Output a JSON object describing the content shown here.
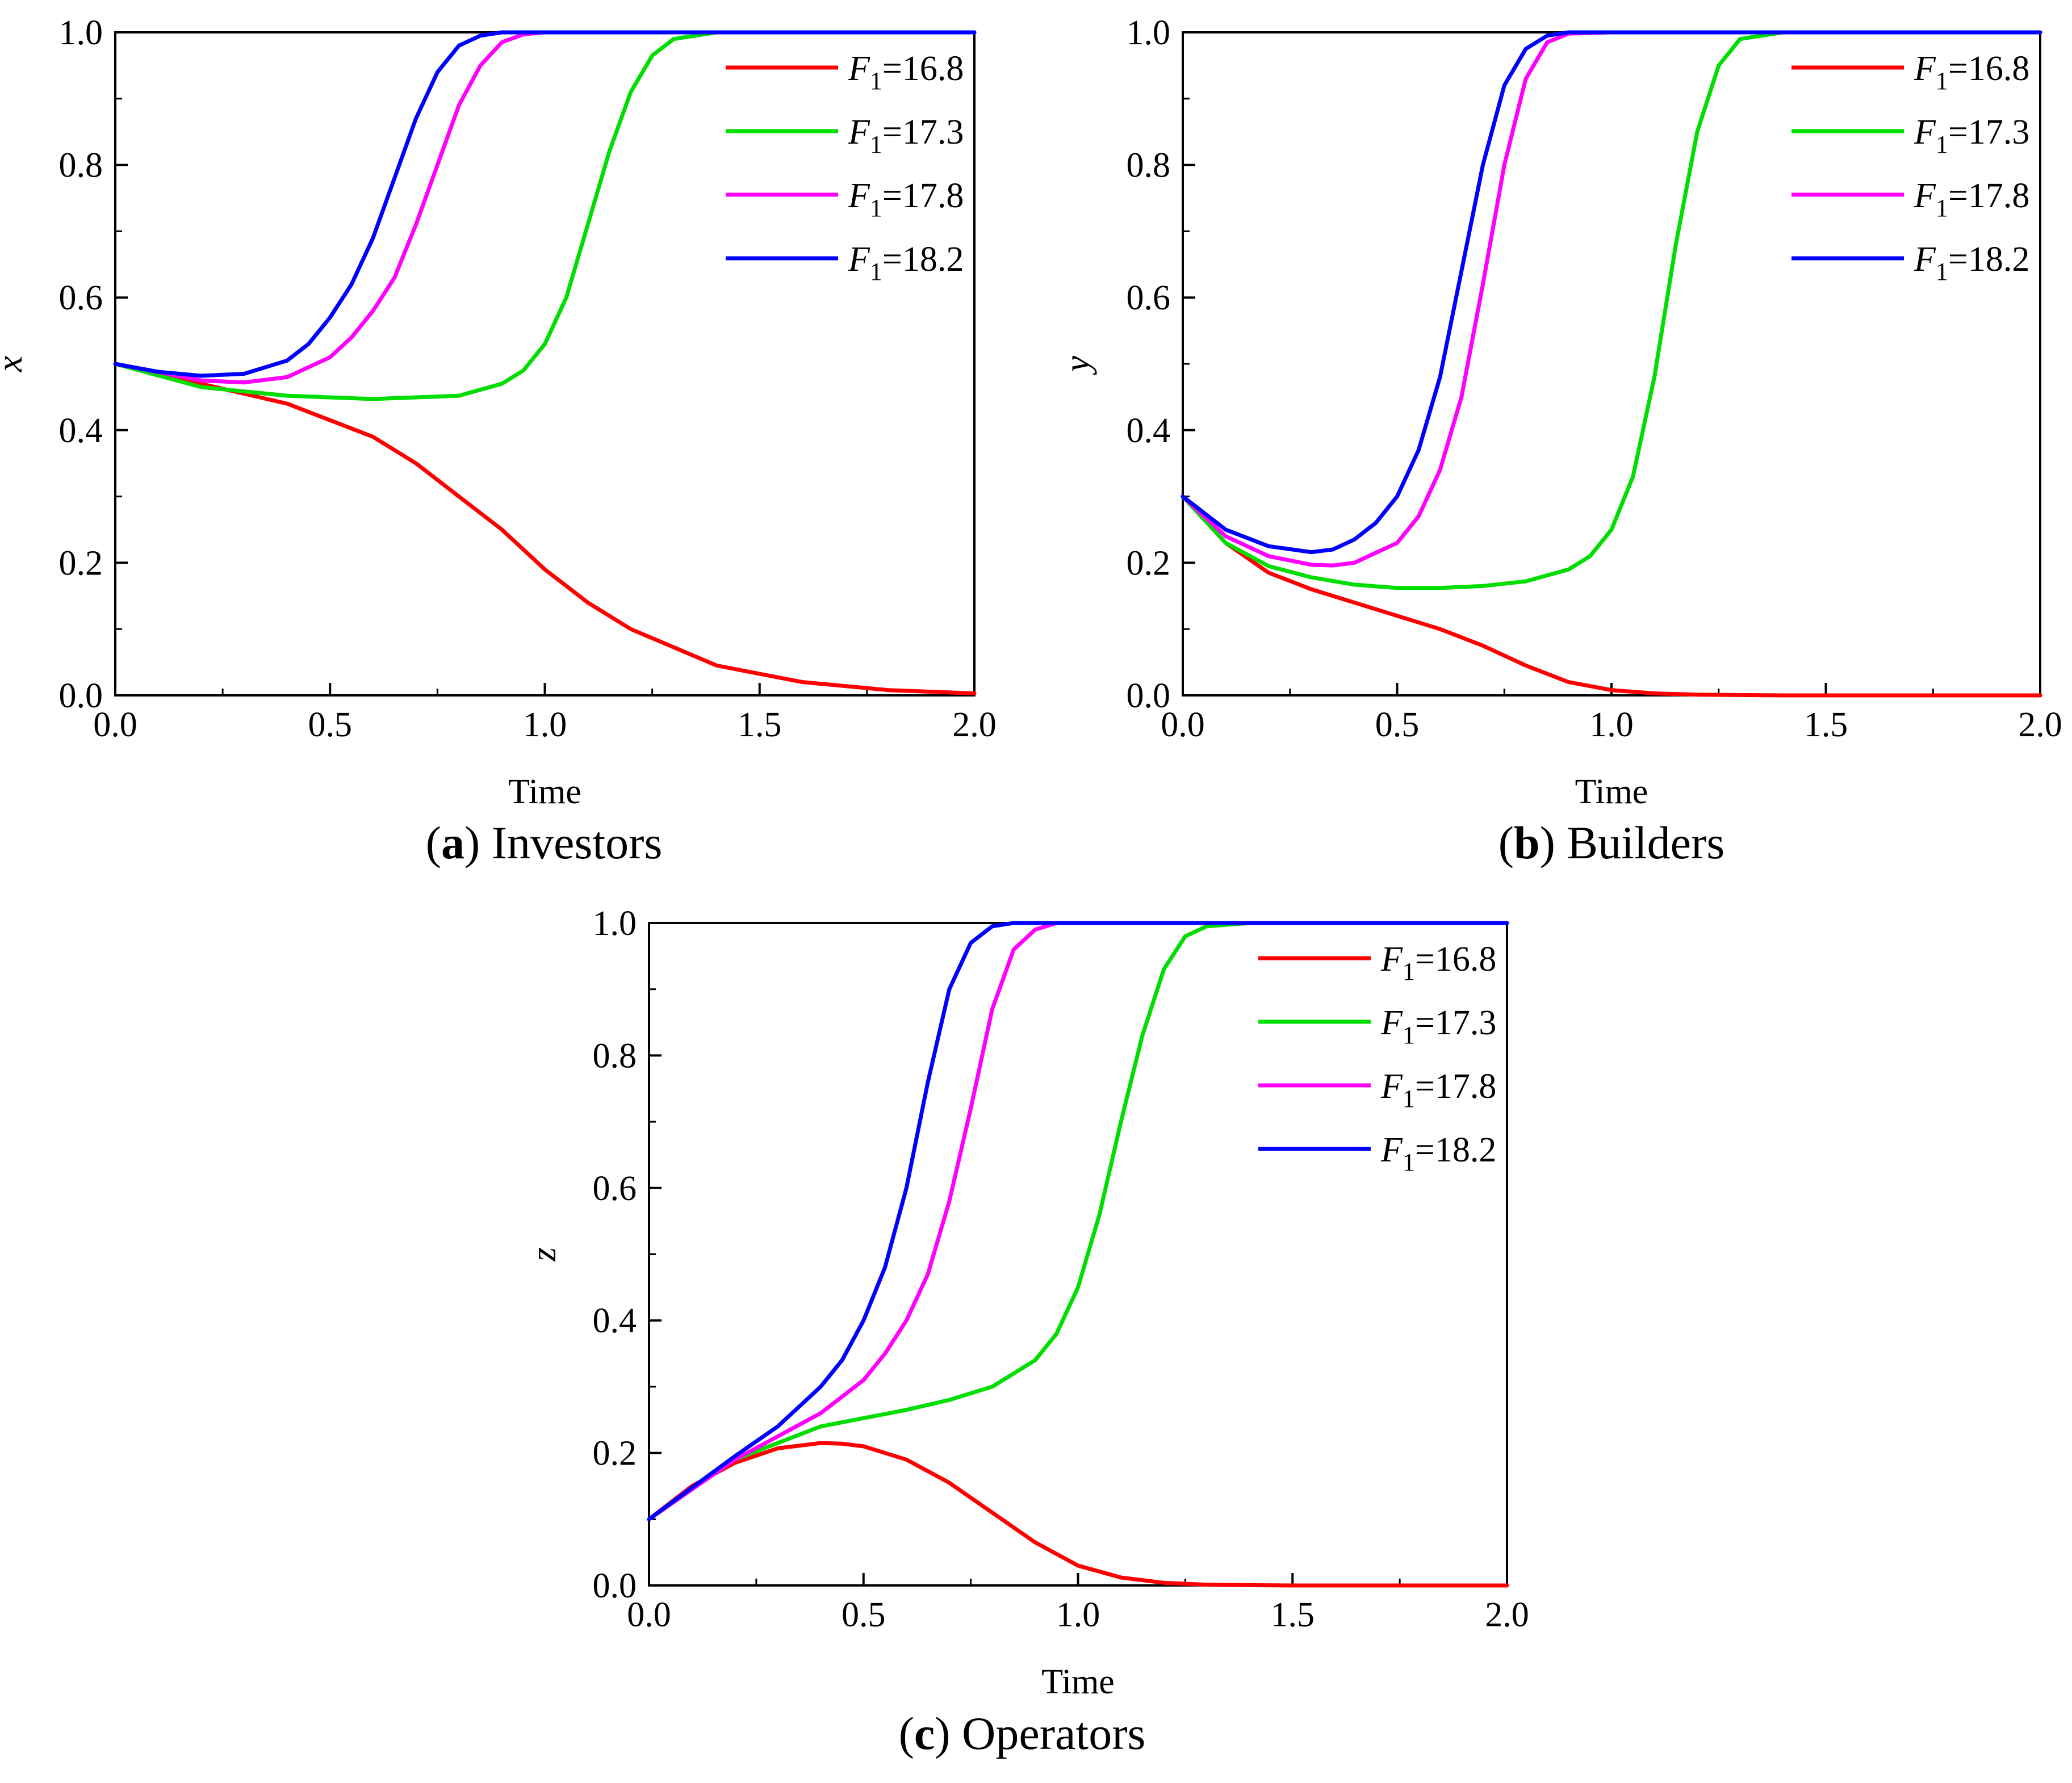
{
  "figure": {
    "legend_prefix": "F",
    "legend_subscript": "1",
    "colors": {
      "axis": "#000000",
      "background": "#ffffff"
    }
  },
  "chart_data": [
    {
      "type": "line",
      "panel_label": "a",
      "caption": "Investors",
      "xlabel": "Time",
      "ylabel": "x",
      "xlim": [
        0,
        2
      ],
      "ylim": [
        0,
        1
      ],
      "xticks": [
        "0.0",
        "0.5",
        "1.0",
        "1.5",
        "2.0"
      ],
      "yticks": [
        "0.0",
        "0.2",
        "0.4",
        "0.6",
        "0.8",
        "1.0"
      ],
      "legend_position": "top-right",
      "series": [
        {
          "name": "F1=16.8",
          "value_label": "=16.8",
          "color": "#ff0000",
          "x": [
            0,
            0.2,
            0.4,
            0.6,
            0.7,
            0.8,
            0.9,
            1.0,
            1.1,
            1.2,
            1.4,
            1.6,
            1.8,
            2.0
          ],
          "y": [
            0.5,
            0.47,
            0.44,
            0.39,
            0.35,
            0.3,
            0.25,
            0.19,
            0.14,
            0.1,
            0.045,
            0.02,
            0.008,
            0.003
          ]
        },
        {
          "name": "F1=17.3",
          "value_label": "=17.3",
          "color": "#00dd00",
          "x": [
            0,
            0.2,
            0.4,
            0.6,
            0.8,
            0.9,
            0.95,
            1.0,
            1.05,
            1.1,
            1.15,
            1.2,
            1.25,
            1.3,
            1.4,
            1.6,
            2.0
          ],
          "y": [
            0.5,
            0.465,
            0.452,
            0.447,
            0.452,
            0.47,
            0.49,
            0.53,
            0.6,
            0.71,
            0.82,
            0.91,
            0.965,
            0.99,
            1.0,
            1.0,
            1.0
          ]
        },
        {
          "name": "F1=17.8",
          "value_label": "=17.8",
          "color": "#ff00ff",
          "x": [
            0,
            0.2,
            0.3,
            0.4,
            0.5,
            0.55,
            0.6,
            0.65,
            0.7,
            0.75,
            0.8,
            0.85,
            0.9,
            0.95,
            1.0,
            1.2,
            2.0
          ],
          "y": [
            0.5,
            0.475,
            0.472,
            0.48,
            0.51,
            0.54,
            0.58,
            0.63,
            0.71,
            0.8,
            0.89,
            0.95,
            0.985,
            0.997,
            1.0,
            1.0,
            1.0
          ]
        },
        {
          "name": "F1=18.2",
          "value_label": "=18.2",
          "color": "#0000ff",
          "x": [
            0,
            0.1,
            0.2,
            0.3,
            0.4,
            0.45,
            0.5,
            0.55,
            0.6,
            0.65,
            0.7,
            0.75,
            0.8,
            0.85,
            0.9,
            1.0,
            2.0
          ],
          "y": [
            0.5,
            0.488,
            0.482,
            0.485,
            0.505,
            0.53,
            0.57,
            0.62,
            0.69,
            0.78,
            0.87,
            0.94,
            0.98,
            0.995,
            1.0,
            1.0,
            1.0
          ]
        }
      ]
    },
    {
      "type": "line",
      "panel_label": "b",
      "caption": "Builders",
      "xlabel": "Time",
      "ylabel": "y",
      "xlim": [
        0,
        2
      ],
      "ylim": [
        0,
        1
      ],
      "xticks": [
        "0.0",
        "0.5",
        "1.0",
        "1.5",
        "2.0"
      ],
      "yticks": [
        "0.0",
        "0.2",
        "0.4",
        "0.6",
        "0.8",
        "1.0"
      ],
      "legend_position": "top-right",
      "series": [
        {
          "name": "F1=16.8",
          "value_label": "=16.8",
          "color": "#ff0000",
          "x": [
            0,
            0.1,
            0.2,
            0.3,
            0.4,
            0.5,
            0.6,
            0.7,
            0.8,
            0.9,
            1.0,
            1.1,
            1.2,
            1.4,
            2.0
          ],
          "y": [
            0.3,
            0.23,
            0.185,
            0.16,
            0.14,
            0.12,
            0.1,
            0.075,
            0.045,
            0.02,
            0.008,
            0.003,
            0.001,
            0.0,
            0.0
          ]
        },
        {
          "name": "F1=17.3",
          "value_label": "=17.3",
          "color": "#00dd00",
          "x": [
            0,
            0.1,
            0.2,
            0.3,
            0.4,
            0.5,
            0.6,
            0.7,
            0.8,
            0.9,
            0.95,
            1.0,
            1.05,
            1.1,
            1.15,
            1.2,
            1.25,
            1.3,
            1.4,
            2.0
          ],
          "y": [
            0.3,
            0.23,
            0.195,
            0.178,
            0.167,
            0.162,
            0.162,
            0.165,
            0.172,
            0.19,
            0.21,
            0.25,
            0.33,
            0.48,
            0.68,
            0.85,
            0.95,
            0.99,
            1.0,
            1.0
          ]
        },
        {
          "name": "F1=17.8",
          "value_label": "=17.8",
          "color": "#ff00ff",
          "x": [
            0,
            0.1,
            0.2,
            0.3,
            0.35,
            0.4,
            0.5,
            0.55,
            0.6,
            0.65,
            0.7,
            0.75,
            0.8,
            0.85,
            0.9,
            1.0,
            2.0
          ],
          "y": [
            0.3,
            0.24,
            0.21,
            0.197,
            0.196,
            0.2,
            0.23,
            0.27,
            0.34,
            0.45,
            0.62,
            0.8,
            0.93,
            0.985,
            0.998,
            1.0,
            1.0
          ]
        },
        {
          "name": "F1=18.2",
          "value_label": "=18.2",
          "color": "#0000ff",
          "x": [
            0,
            0.1,
            0.2,
            0.3,
            0.35,
            0.4,
            0.45,
            0.5,
            0.55,
            0.6,
            0.65,
            0.7,
            0.75,
            0.8,
            0.85,
            0.9,
            1.0,
            2.0
          ],
          "y": [
            0.3,
            0.25,
            0.225,
            0.216,
            0.22,
            0.235,
            0.26,
            0.3,
            0.37,
            0.48,
            0.64,
            0.8,
            0.92,
            0.975,
            0.995,
            1.0,
            1.0,
            1.0
          ]
        }
      ]
    },
    {
      "type": "line",
      "panel_label": "c",
      "caption": "Operators",
      "xlabel": "Time",
      "ylabel": "z",
      "xlim": [
        0,
        2
      ],
      "ylim": [
        0,
        1
      ],
      "xticks": [
        "0.0",
        "0.5",
        "1.0",
        "1.5",
        "2.0"
      ],
      "yticks": [
        "0.0",
        "0.2",
        "0.4",
        "0.6",
        "0.8",
        "1.0"
      ],
      "legend_position": "top-right",
      "series": [
        {
          "name": "F1=16.8",
          "value_label": "=16.8",
          "color": "#ff0000",
          "x": [
            0,
            0.1,
            0.2,
            0.3,
            0.4,
            0.45,
            0.5,
            0.6,
            0.7,
            0.8,
            0.9,
            1.0,
            1.1,
            1.2,
            1.3,
            1.5,
            2.0
          ],
          "y": [
            0.1,
            0.15,
            0.185,
            0.207,
            0.215,
            0.214,
            0.21,
            0.19,
            0.155,
            0.11,
            0.065,
            0.03,
            0.012,
            0.004,
            0.001,
            0.0,
            0.0
          ]
        },
        {
          "name": "F1=17.3",
          "value_label": "=17.3",
          "color": "#00dd00",
          "x": [
            0,
            0.2,
            0.4,
            0.6,
            0.7,
            0.8,
            0.9,
            0.95,
            1.0,
            1.05,
            1.1,
            1.15,
            1.2,
            1.25,
            1.3,
            1.4,
            2.0
          ],
          "y": [
            0.1,
            0.19,
            0.24,
            0.265,
            0.28,
            0.3,
            0.34,
            0.38,
            0.45,
            0.56,
            0.7,
            0.83,
            0.93,
            0.98,
            0.995,
            1.0,
            1.0
          ]
        },
        {
          "name": "F1=17.8",
          "value_label": "=17.8",
          "color": "#ff00ff",
          "x": [
            0,
            0.2,
            0.3,
            0.4,
            0.5,
            0.55,
            0.6,
            0.65,
            0.7,
            0.75,
            0.8,
            0.85,
            0.9,
            0.95,
            1.0,
            2.0
          ],
          "y": [
            0.1,
            0.19,
            0.225,
            0.26,
            0.31,
            0.35,
            0.4,
            0.47,
            0.58,
            0.72,
            0.87,
            0.96,
            0.99,
            1.0,
            1.0,
            1.0
          ]
        },
        {
          "name": "F1=18.2",
          "value_label": "=18.2",
          "color": "#0000ff",
          "x": [
            0,
            0.2,
            0.3,
            0.4,
            0.45,
            0.5,
            0.55,
            0.6,
            0.65,
            0.7,
            0.75,
            0.8,
            0.85,
            0.9,
            1.0,
            2.0
          ],
          "y": [
            0.1,
            0.195,
            0.24,
            0.3,
            0.34,
            0.4,
            0.48,
            0.6,
            0.76,
            0.9,
            0.97,
            0.995,
            1.0,
            1.0,
            1.0,
            1.0
          ]
        }
      ]
    }
  ]
}
